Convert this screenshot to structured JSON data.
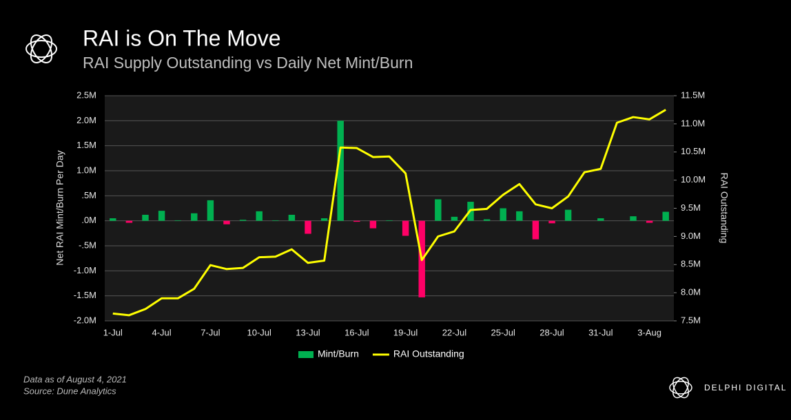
{
  "chart_data": {
    "type": "bar_line",
    "title": "RAI is On The Move",
    "subtitle": "RAI Supply Outstanding vs Daily Net Mint/Burn",
    "ylabel": "Net RAI Mint/Burn Per Day",
    "y2label": "RAI Outstanding",
    "categories": [
      "1-Jul",
      null,
      null,
      "4-Jul",
      null,
      null,
      "7-Jul",
      null,
      null,
      "10-Jul",
      null,
      null,
      "13-Jul",
      null,
      null,
      "16-Jul",
      null,
      null,
      "19-Jul",
      null,
      null,
      "22-Jul",
      null,
      null,
      "25-Jul",
      null,
      null,
      "28-Jul",
      null,
      null,
      "31-Jul",
      null,
      null,
      "3-Aug",
      null
    ],
    "series": [
      {
        "name": "Mint/Burn",
        "type": "bar",
        "color": "#00b050",
        "negative_color": "#ff0066",
        "values": [
          50000,
          -40000,
          120000,
          200000,
          10000,
          150000,
          410000,
          -70000,
          20000,
          190000,
          10000,
          120000,
          -260000,
          50000,
          2000000,
          -20000,
          -150000,
          10000,
          -300000,
          -1530000,
          430000,
          80000,
          380000,
          30000,
          250000,
          190000,
          -370000,
          -50000,
          220000,
          0,
          50000,
          0,
          90000,
          -40000,
          180000
        ]
      },
      {
        "name": "RAI Outstanding",
        "type": "line",
        "axis": "y2",
        "color": "#ffff00",
        "values": [
          7630000,
          7600000,
          7710000,
          7900000,
          7900000,
          8070000,
          8490000,
          8420000,
          8440000,
          8630000,
          8640000,
          8770000,
          8530000,
          8570000,
          10580000,
          10570000,
          10410000,
          10420000,
          10120000,
          8580000,
          9000000,
          9090000,
          9470000,
          9490000,
          9740000,
          9930000,
          9570000,
          9500000,
          9710000,
          10140000,
          10200000,
          11020000,
          11120000,
          11080000,
          11250000
        ]
      }
    ],
    "ylim": [
      -2000000,
      2500000
    ],
    "yticks": [
      {
        "value": -2000000,
        "label": "-2.0M"
      },
      {
        "value": -1500000,
        "label": "-1.5M"
      },
      {
        "value": -1000000,
        "label": "-1.0M"
      },
      {
        "value": -500000,
        "label": "-.5M"
      },
      {
        "value": 0,
        "label": ".0M"
      },
      {
        "value": 500000,
        "label": ".5M"
      },
      {
        "value": 1000000,
        "label": "1.0M"
      },
      {
        "value": 1500000,
        "label": "1.5M"
      },
      {
        "value": 2000000,
        "label": "2.0M"
      },
      {
        "value": 2500000,
        "label": "2.5M"
      }
    ],
    "y2lim": [
      7500000,
      11500000
    ],
    "y2ticks": [
      {
        "value": 7500000,
        "label": "7.5M"
      },
      {
        "value": 8000000,
        "label": "8.0M"
      },
      {
        "value": 8500000,
        "label": "8.5M"
      },
      {
        "value": 9000000,
        "label": "9.0M"
      },
      {
        "value": 9500000,
        "label": "9.5M"
      },
      {
        "value": 10000000,
        "label": "10.0M"
      },
      {
        "value": 10500000,
        "label": "10.5M"
      },
      {
        "value": 11000000,
        "label": "11.0M"
      },
      {
        "value": 11500000,
        "label": "11.5M"
      }
    ],
    "grid": true,
    "legend": "bottom",
    "notes": [
      "Data as of August 4, 2021",
      "Source:  Dune Analytics"
    ],
    "brand": "DELPHI DIGITAL"
  }
}
